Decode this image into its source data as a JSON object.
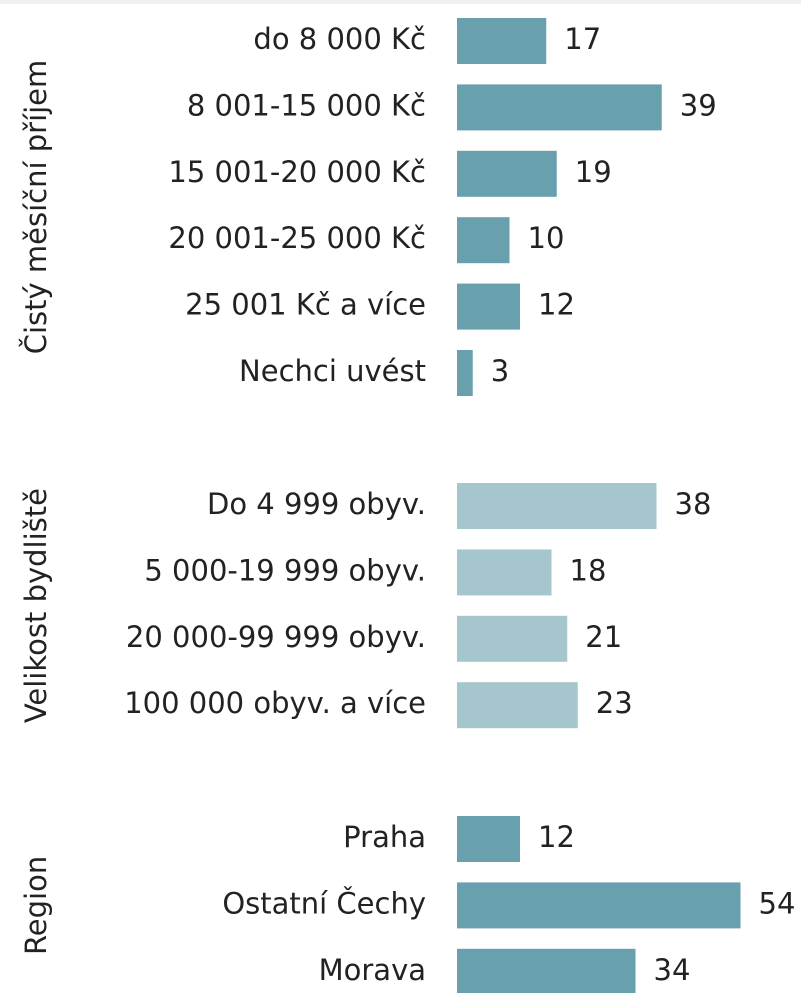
{
  "chart_data": [
    {
      "type": "bar",
      "orientation": "horizontal",
      "y_label": "Čistý měsíční příjem",
      "color": "#69a0ad",
      "categories": [
        "do 8 000 Kč",
        "8 001-15 000 Kč",
        "15 001-20 000 Kč",
        "20 001-25 000 Kč",
        "25 001 Kč a více",
        "Nechci uvést"
      ],
      "values": [
        17,
        39,
        19,
        10,
        12,
        3
      ]
    },
    {
      "type": "bar",
      "orientation": "horizontal",
      "y_label": "Velikost bydliště",
      "color": "#a6c6cd",
      "categories": [
        "Do 4 999 obyv.",
        "5 000-19 999 obyv.",
        "20 000-99 999 obyv.",
        "100 000 obyv. a více"
      ],
      "values": [
        38,
        18,
        21,
        23
      ]
    },
    {
      "type": "bar",
      "orientation": "horizontal",
      "y_label": "Region",
      "color": "#69a0ad",
      "categories": [
        "Praha",
        "Ostatní Čechy",
        "Morava"
      ],
      "values": [
        12,
        54,
        34
      ]
    }
  ]
}
